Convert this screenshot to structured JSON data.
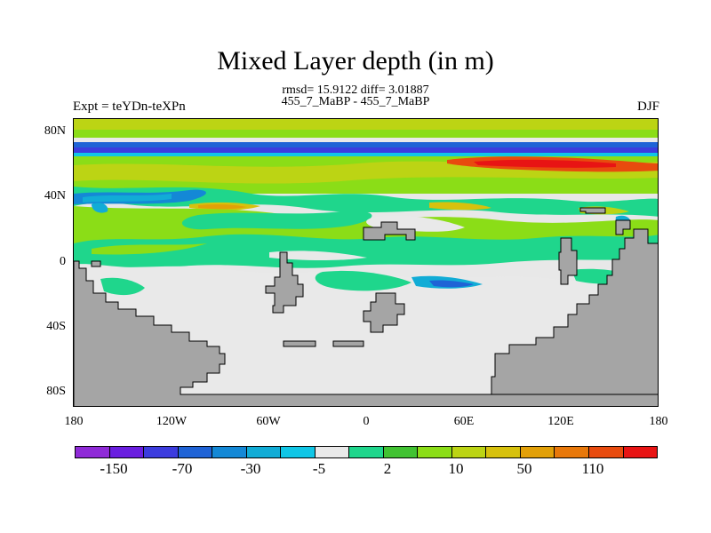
{
  "title": "Mixed Layer depth (in m)",
  "subtitle": "rmsd= 15.9122 diff= 3.01887",
  "subtitle2": "455_7_MaBP - 455_7_MaBP",
  "left_label": "Expt = teYDn-teXPn",
  "right_label": "DJF",
  "lat_ticks": [
    "80N",
    "40N",
    "0",
    "40S",
    "80S"
  ],
  "lon_ticks": [
    "180",
    "120W",
    "60W",
    "0",
    "60E",
    "120E",
    "180"
  ],
  "colorbar": {
    "colors": [
      "#8f2ad7",
      "#6a1ee0",
      "#3c3cde",
      "#1f63d6",
      "#1488d6",
      "#11acd6",
      "#10c6e6",
      "#e9e9e9",
      "#1fd68c",
      "#41c232",
      "#8bdd17",
      "#bcd414",
      "#d7c10d",
      "#e2a008",
      "#e8780a",
      "#e84b0e",
      "#e81414"
    ],
    "labels": [
      "-150",
      "-70",
      "-30",
      "-5",
      "2",
      "10",
      "50",
      "110"
    ]
  },
  "land_color": "#a5a5a5"
}
